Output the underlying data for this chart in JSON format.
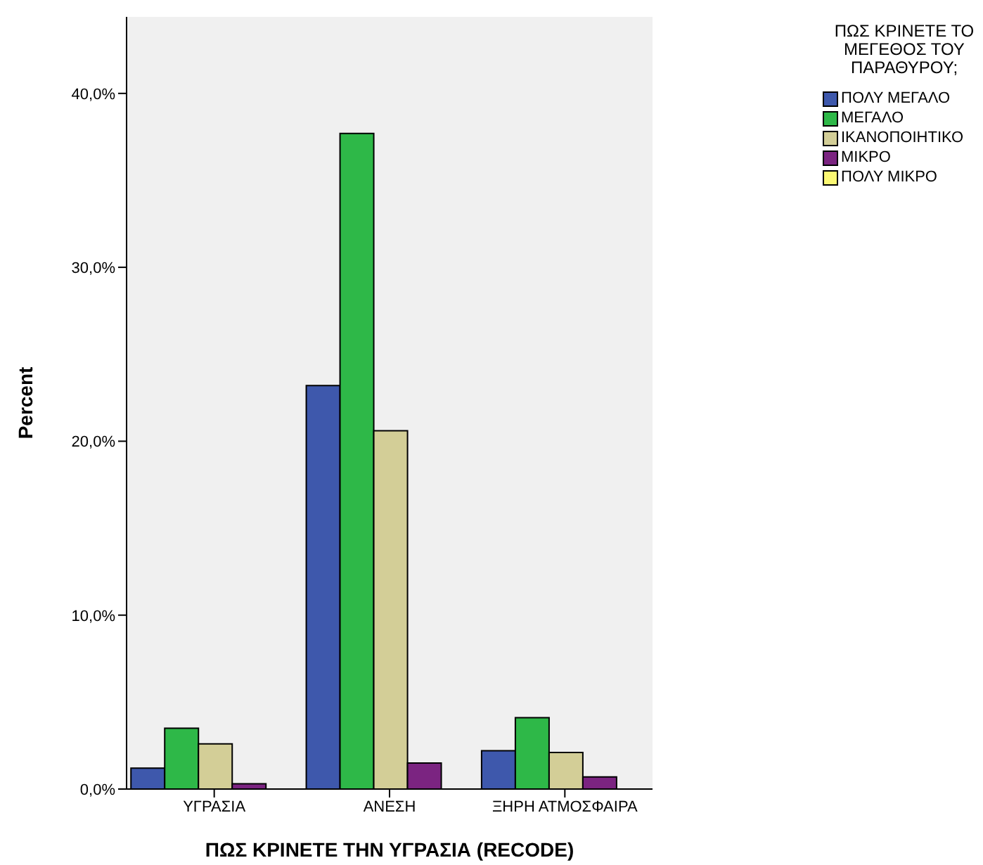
{
  "chart_data": {
    "type": "bar",
    "xlabel": "ΠΩΣ ΚΡΙΝΕΤΕ ΤΗΝ ΥΓΡΑΣΙΑ (RECODE)",
    "ylabel": "Percent",
    "legend_title": "ΠΩΣ ΚΡΙΝΕΤΕ ΤΟ ΜΕΓΕΘΟΣ ΤΟΥ ΠΑΡΑΘΥΡΟΥ;",
    "legend": "right",
    "categories": [
      "ΥΓΡΑΣΙΑ",
      "ΑΝΕΣΗ",
      "ΞΗΡΗ ΑΤΜΟΣΦΑΙΡΑ"
    ],
    "series": [
      {
        "name": "ΠΟΛΥ ΜΕΓΑΛΟ",
        "color": "#3e58ac",
        "values": [
          1.2,
          23.2,
          2.2
        ]
      },
      {
        "name": "ΜΕΓΑΛΟ",
        "color": "#2eb848",
        "values": [
          3.5,
          37.7,
          4.1
        ]
      },
      {
        "name": "ΙΚΑΝΟΠΟΙΗΤΙΚΟ",
        "color": "#d3ce97",
        "values": [
          2.6,
          20.6,
          2.1
        ]
      },
      {
        "name": "ΜΙΚΡΟ",
        "color": "#7b2481",
        "values": [
          0.3,
          1.5,
          0.7
        ]
      },
      {
        "name": "ΠΟΛΥ ΜΙΚΡΟ",
        "color": "#fbf873",
        "values": [
          0,
          0,
          0
        ]
      }
    ],
    "ylim": [
      0,
      44.4
    ],
    "yticks": [
      {
        "value": 0,
        "label": "0,0%"
      },
      {
        "value": 10,
        "label": "10,0%"
      },
      {
        "value": 20,
        "label": "20,0%"
      },
      {
        "value": 30,
        "label": "30,0%"
      },
      {
        "value": 40,
        "label": "40,0%"
      }
    ],
    "grid": false
  }
}
